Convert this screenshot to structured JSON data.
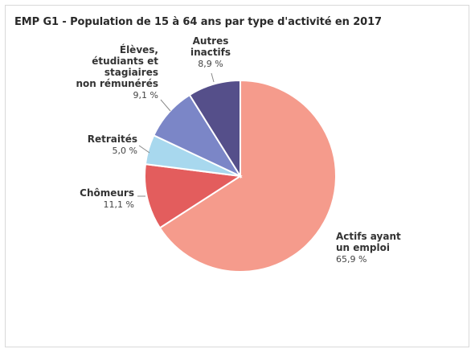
{
  "chart_data": {
    "type": "pie",
    "title": "EMP G1 - Population de 15 à 64 ans par type d'activité en 2017",
    "slices": [
      {
        "label": [
          "Actifs ayant",
          "un emploi"
        ],
        "value": 65.9,
        "value_text": "65,9 %",
        "color": "#f59b8c"
      },
      {
        "label": [
          "Chômeurs"
        ],
        "value": 11.1,
        "value_text": "11,1 %",
        "color": "#e35d5d"
      },
      {
        "label": [
          "Retraités"
        ],
        "value": 5.0,
        "value_text": "5,0 %",
        "color": "#a8d8ee"
      },
      {
        "label": [
          "Élèves,",
          "étudiants et",
          "stagiaires",
          "non rémunérés"
        ],
        "value": 9.1,
        "value_text": "9,1 %",
        "color": "#7b86c7"
      },
      {
        "label": [
          "Autres",
          "inactifs"
        ],
        "value": 8.9,
        "value_text": "8,9 %",
        "color": "#554f8a"
      }
    ]
  }
}
